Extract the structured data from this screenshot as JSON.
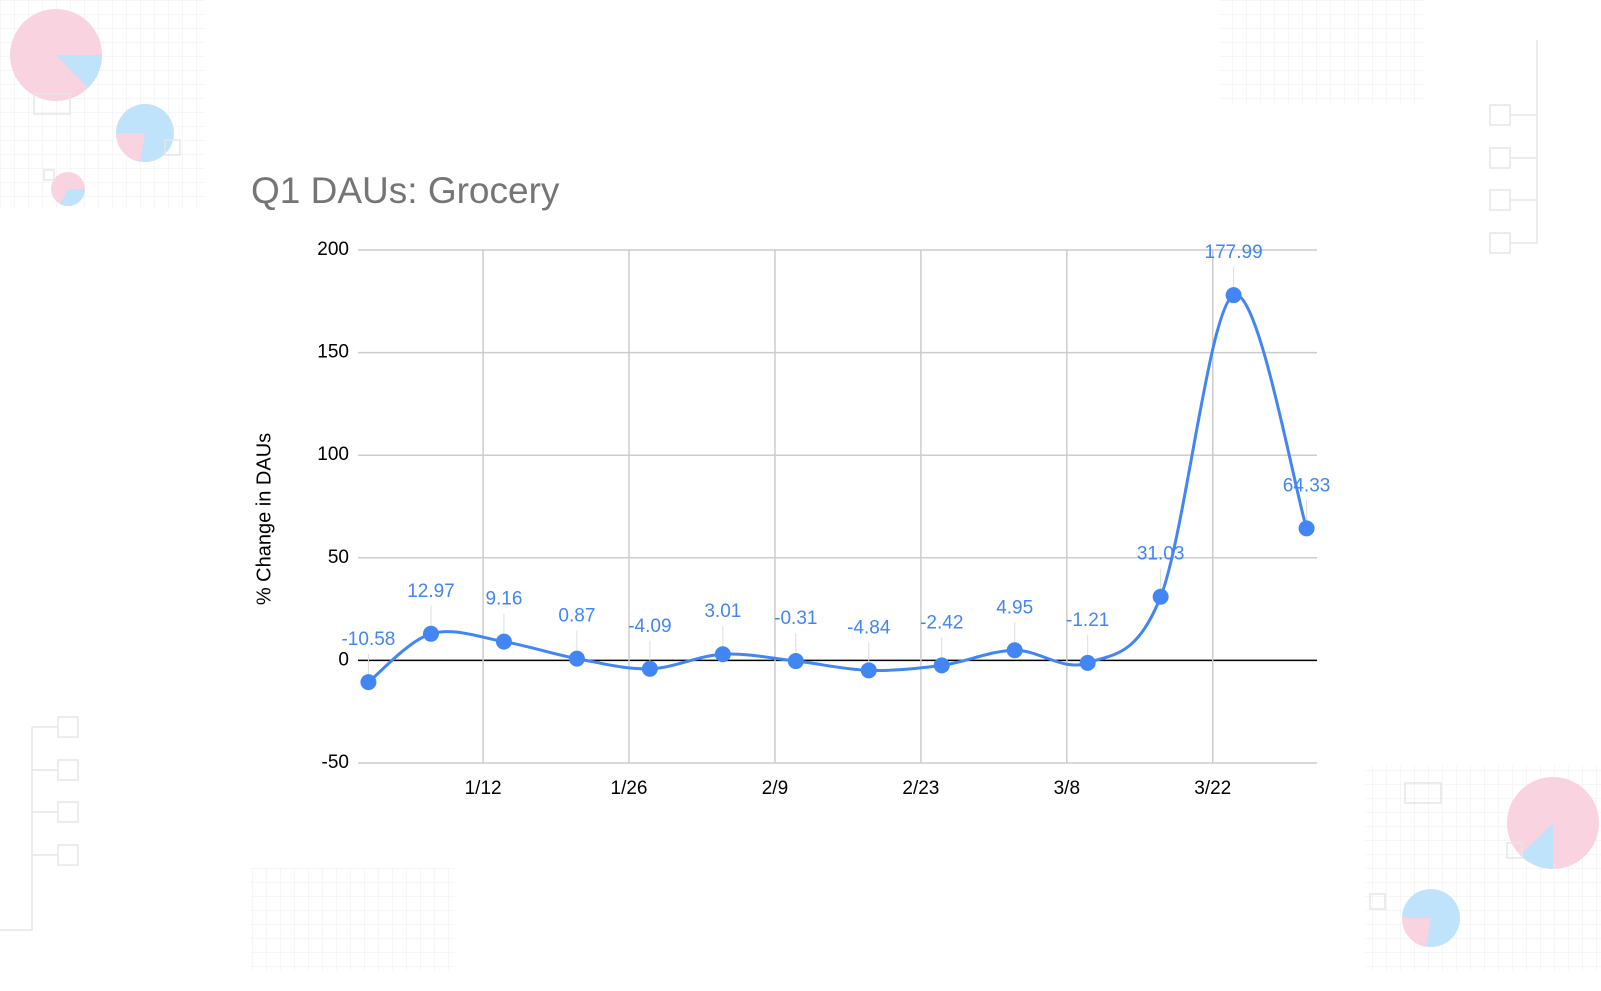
{
  "chart_data": {
    "type": "line",
    "title": "Q1 DAUs: Grocery",
    "y_label": "% Change in DAUs",
    "x": [
      "1/1",
      "1/7",
      "1/14",
      "1/21",
      "1/28",
      "2/4",
      "2/11",
      "2/18",
      "2/25",
      "3/3",
      "3/10",
      "3/17",
      "3/24",
      "3/31"
    ],
    "values": [
      -10.58,
      12.97,
      9.16,
      0.87,
      -4.09,
      3.01,
      -0.31,
      -4.84,
      -2.42,
      4.95,
      -1.21,
      31.03,
      177.99,
      64.33
    ],
    "color": "#4285f4",
    "xlim": [
      "12/31",
      "4/1"
    ],
    "xticks": [
      "1/12",
      "1/26",
      "2/9",
      "2/23",
      "3/8",
      "3/22"
    ],
    "ylim": [
      -50,
      200
    ],
    "yticks": [
      -50,
      0,
      50,
      100,
      150,
      200
    ],
    "grid": true
  }
}
